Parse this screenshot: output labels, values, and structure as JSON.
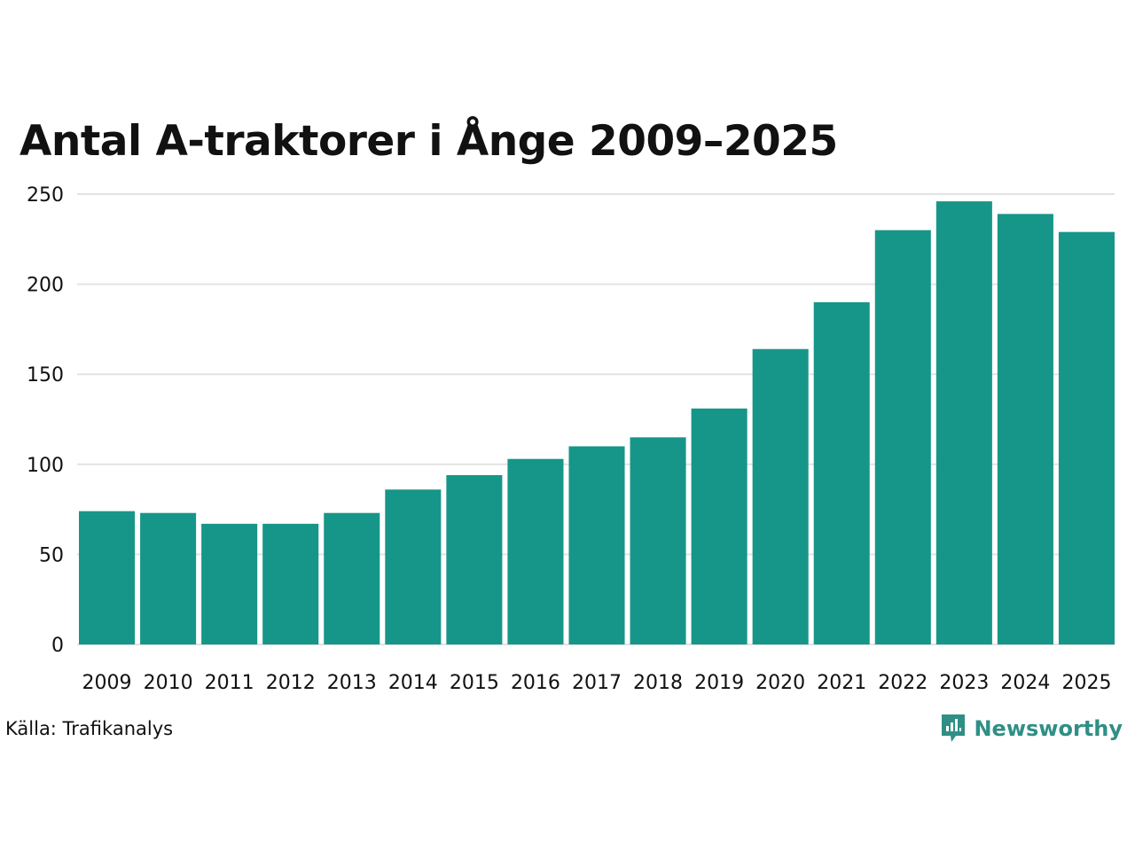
{
  "chart_data": {
    "type": "bar",
    "title": "Antal A-traktorer i Ånge 2009–2025",
    "xlabel": "",
    "ylabel": "",
    "categories": [
      "2009",
      "2010",
      "2011",
      "2012",
      "2013",
      "2014",
      "2015",
      "2016",
      "2017",
      "2018",
      "2019",
      "2020",
      "2021",
      "2022",
      "2023",
      "2024",
      "2025"
    ],
    "values": [
      74,
      73,
      67,
      67,
      73,
      86,
      94,
      103,
      110,
      115,
      131,
      164,
      190,
      230,
      246,
      239,
      229
    ],
    "ylim": [
      0,
      250
    ],
    "yticks": [
      0,
      50,
      100,
      150,
      200,
      250
    ],
    "grid": true,
    "legend": "none"
  },
  "colors": {
    "bar": "#169688",
    "grid": "#e3e3e3",
    "text": "#111111",
    "brand": "#2f8f86"
  },
  "footer": {
    "source": "Källa: Trafikanalys",
    "brand_name": "Newsworthy",
    "brand_icon": "newsworthy-logo-icon"
  }
}
